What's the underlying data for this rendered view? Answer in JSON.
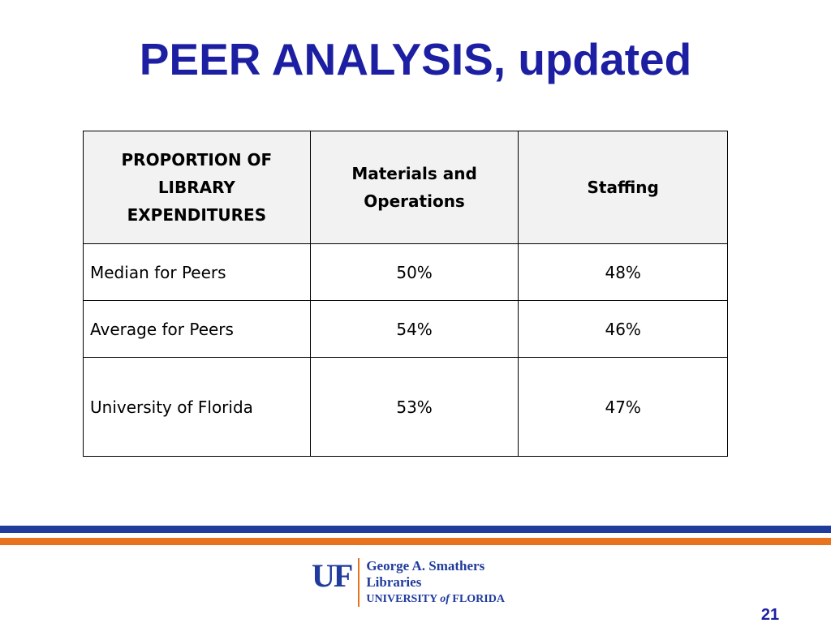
{
  "slide": {
    "title": "PEER ANALYSIS, updated",
    "page_number": "21"
  },
  "table": {
    "headers": [
      "PROPORTION OF LIBRARY EXPENDITURES",
      "Materials and Operations",
      "Staffing"
    ],
    "rows": [
      {
        "label": "Median for Peers",
        "materials": "50%",
        "staffing": "48%"
      },
      {
        "label": "Average for Peers",
        "materials": "54%",
        "staffing": "46%"
      },
      {
        "label": "University of Florida",
        "materials": "53%",
        "staffing": "47%"
      }
    ]
  },
  "logo": {
    "mark": "UF",
    "line1": "George A. Smathers",
    "line2": "Libraries",
    "line3_pre": "UNIVERSITY ",
    "line3_of": "of",
    "line3_post": " FLORIDA"
  },
  "colors": {
    "title": "#1d1fa3",
    "rule_blue": "#1f3b9c",
    "rule_orange": "#e8731f",
    "header_bg": "#f2f2f2"
  }
}
